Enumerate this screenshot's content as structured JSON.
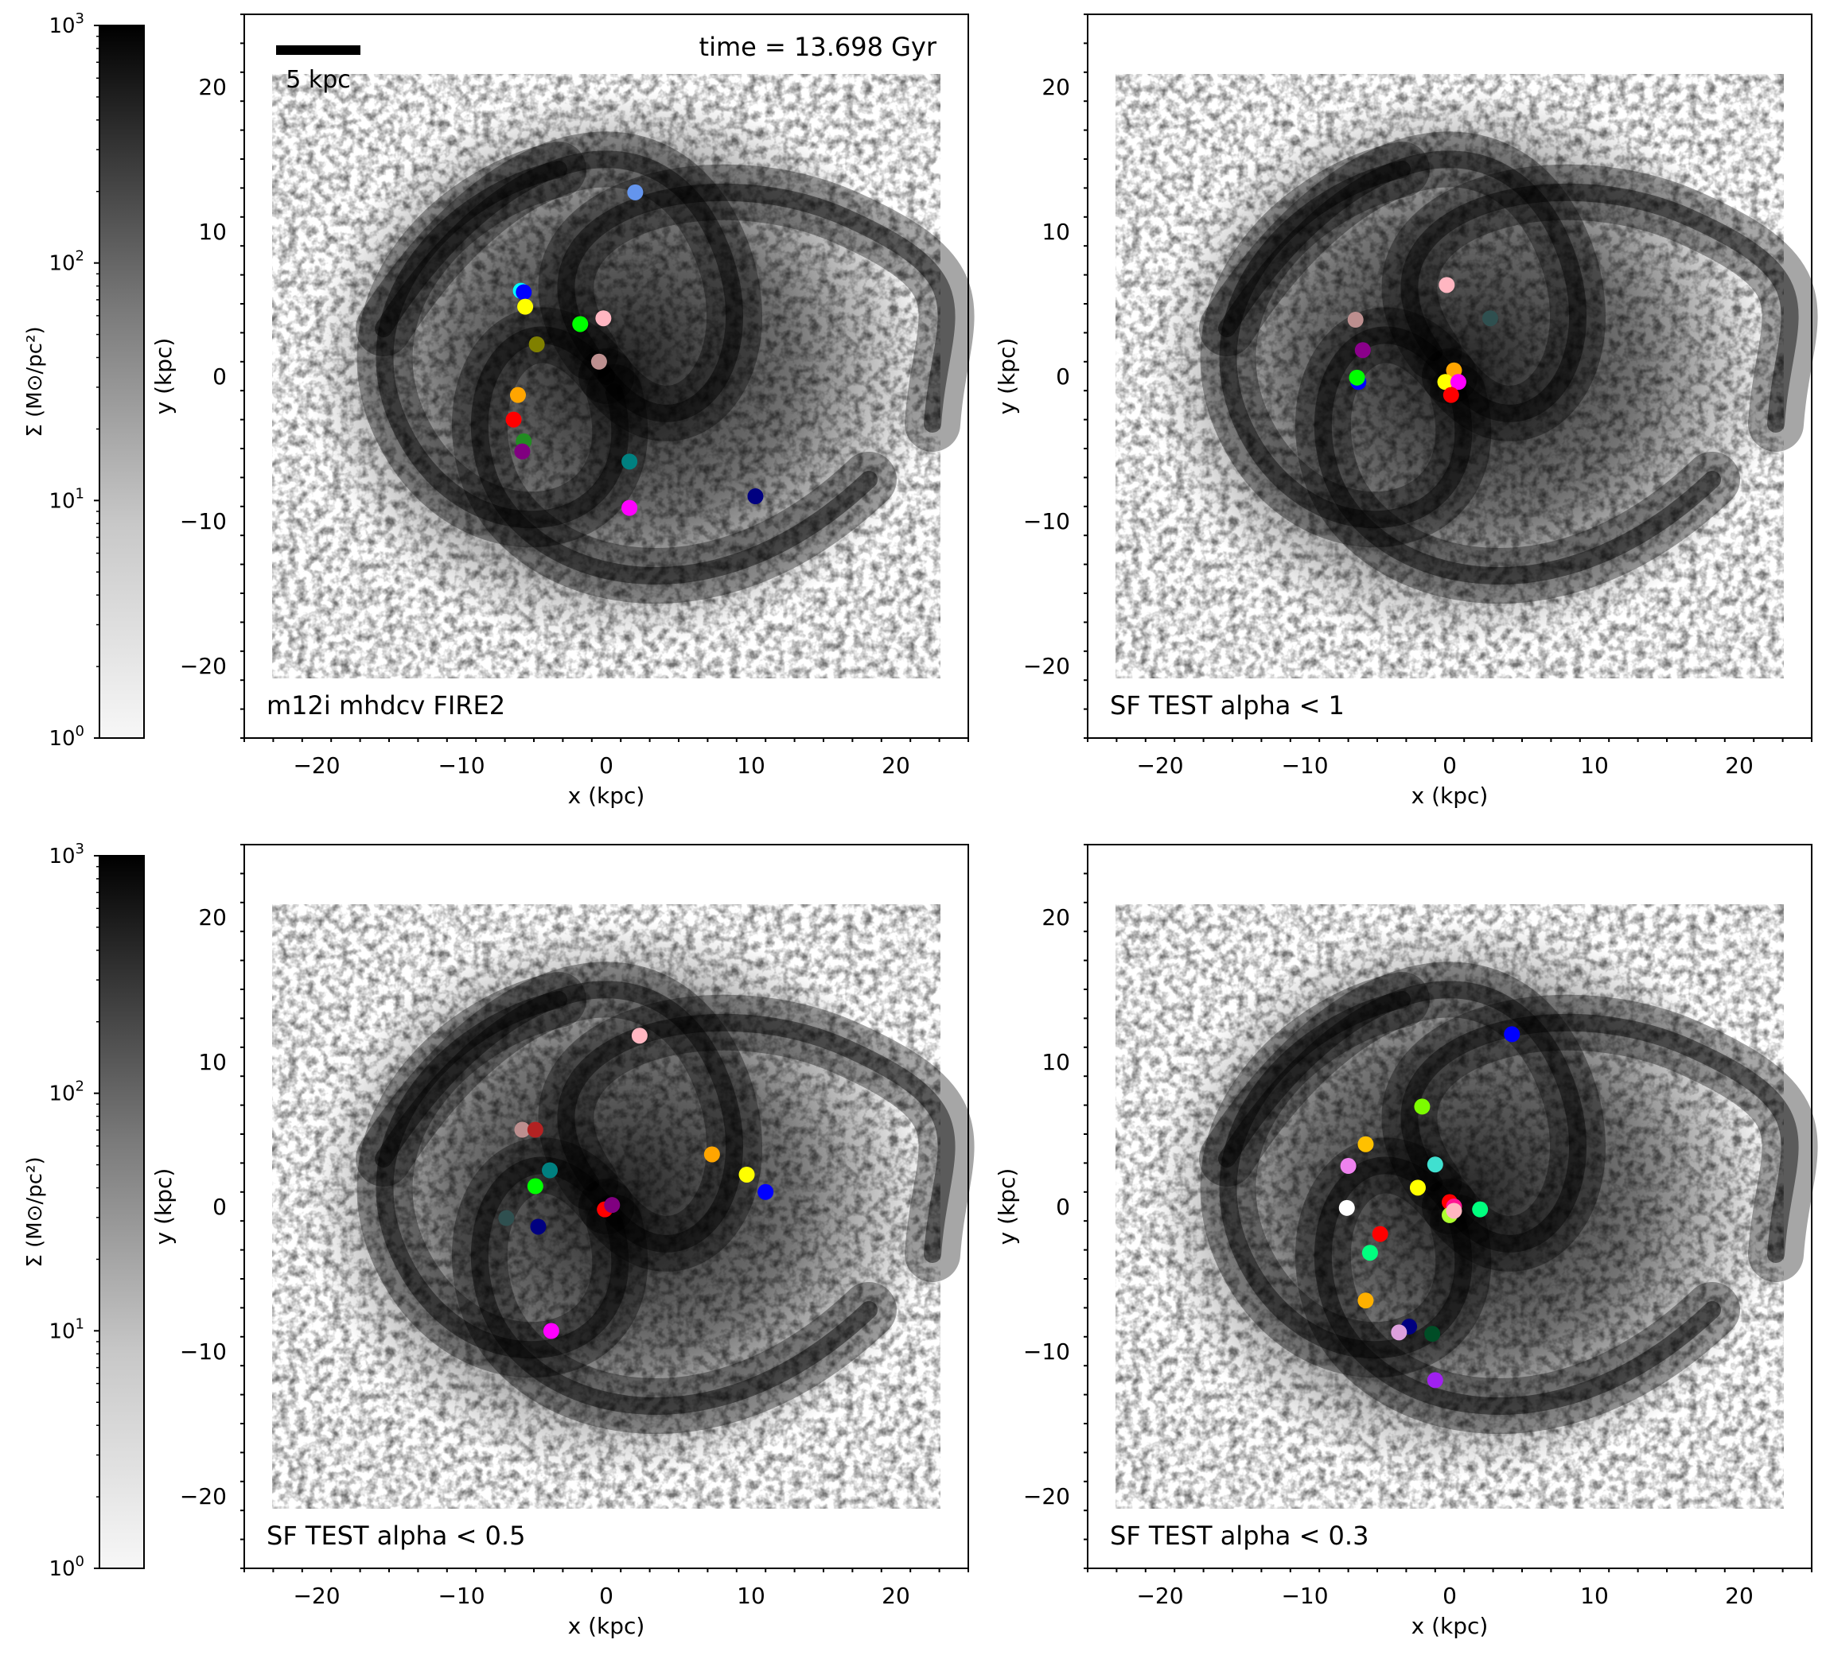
{
  "figure": {
    "time_label": "time = 13.698 Gyr",
    "scalebar_label": "5 kpc",
    "colorbar": {
      "label": "Σ (M⊙/pc²)",
      "ticks": [
        "10^3",
        "10^2",
        "10^1",
        "10^0"
      ]
    }
  },
  "chart_data": [
    {
      "type": "scatter",
      "title": "m12i mhdcv FIRE2",
      "xlabel": "x (kpc)",
      "ylabel": "y (kpc)",
      "xlim": [
        -25,
        25
      ],
      "ylim": [
        -25,
        25
      ],
      "xticks": [
        "−20",
        "−10",
        "0",
        "10",
        "20"
      ],
      "yticks": [
        "20",
        "10",
        "0",
        "−10",
        "−20"
      ],
      "background": "grayscale gas surface density map, spiral galaxy",
      "points": [
        {
          "x": 2.0,
          "y": 12.7,
          "color": "#6495ed"
        },
        {
          "x": -5.9,
          "y": 5.9,
          "color": "#00ffff"
        },
        {
          "x": -5.7,
          "y": 5.8,
          "color": "#0000ff"
        },
        {
          "x": -5.6,
          "y": 4.8,
          "color": "#ffff00"
        },
        {
          "x": -1.8,
          "y": 3.6,
          "color": "#00ff00"
        },
        {
          "x": -0.2,
          "y": 4.0,
          "color": "#ffb6c1"
        },
        {
          "x": -4.8,
          "y": 2.2,
          "color": "#808000"
        },
        {
          "x": -0.5,
          "y": 1.0,
          "color": "#bc8f8f"
        },
        {
          "x": -6.1,
          "y": -1.3,
          "color": "#ffa500"
        },
        {
          "x": -6.4,
          "y": -3.0,
          "color": "#ff0000"
        },
        {
          "x": -5.7,
          "y": -4.5,
          "color": "#228b22"
        },
        {
          "x": -5.8,
          "y": -5.2,
          "color": "#800080"
        },
        {
          "x": 1.6,
          "y": -5.9,
          "color": "#008080"
        },
        {
          "x": 10.3,
          "y": -8.3,
          "color": "#000080"
        },
        {
          "x": 1.6,
          "y": -9.1,
          "color": "#ff00ff"
        }
      ]
    },
    {
      "type": "scatter",
      "title": "SF TEST alpha < 1",
      "xlabel": "x (kpc)",
      "ylabel": "y (kpc)",
      "xlim": [
        -25,
        25
      ],
      "ylim": [
        -25,
        25
      ],
      "xticks": [
        "−20",
        "−10",
        "0",
        "10",
        "20"
      ],
      "yticks": [
        "20",
        "10",
        "0",
        "−10",
        "−20"
      ],
      "background": "grayscale gas surface density map, spiral galaxy",
      "points": [
        {
          "x": -0.2,
          "y": 6.3,
          "color": "#ffb6c1"
        },
        {
          "x": -6.5,
          "y": 3.9,
          "color": "#bc8f8f"
        },
        {
          "x": 2.8,
          "y": 4.0,
          "color": "#2f4f4f"
        },
        {
          "x": -6.0,
          "y": 1.8,
          "color": "#8b008b"
        },
        {
          "x": -6.3,
          "y": -0.4,
          "color": "#0000ff"
        },
        {
          "x": -6.4,
          "y": -0.1,
          "color": "#00ff00"
        },
        {
          "x": 0.3,
          "y": 0.4,
          "color": "#ffa500"
        },
        {
          "x": -0.3,
          "y": -0.4,
          "color": "#ffff00"
        },
        {
          "x": 0.6,
          "y": -0.4,
          "color": "#ff00ff"
        },
        {
          "x": 0.1,
          "y": -1.3,
          "color": "#ff0000"
        }
      ]
    },
    {
      "type": "scatter",
      "title": "SF TEST alpha < 0.5",
      "xlabel": "x (kpc)",
      "ylabel": "y (kpc)",
      "xlim": [
        -25,
        25
      ],
      "ylim": [
        -25,
        25
      ],
      "xticks": [
        "−20",
        "−10",
        "0",
        "10",
        "20"
      ],
      "yticks": [
        "20",
        "10",
        "0",
        "−10",
        "−20"
      ],
      "background": "grayscale gas surface density map, spiral galaxy",
      "points": [
        {
          "x": 2.3,
          "y": 11.8,
          "color": "#ffb6c1"
        },
        {
          "x": -5.8,
          "y": 5.3,
          "color": "#bc8f8f"
        },
        {
          "x": -4.9,
          "y": 5.3,
          "color": "#b22222"
        },
        {
          "x": 7.3,
          "y": 3.6,
          "color": "#ffa500"
        },
        {
          "x": 9.7,
          "y": 2.2,
          "color": "#ffff00"
        },
        {
          "x": 11.0,
          "y": 1.0,
          "color": "#0000ff"
        },
        {
          "x": -3.9,
          "y": 2.5,
          "color": "#008080"
        },
        {
          "x": -4.9,
          "y": 1.4,
          "color": "#00ff00"
        },
        {
          "x": -0.1,
          "y": -0.2,
          "color": "#ff0000"
        },
        {
          "x": 0.4,
          "y": 0.1,
          "color": "#800080"
        },
        {
          "x": -6.9,
          "y": -0.8,
          "color": "#2f4f4f"
        },
        {
          "x": -4.7,
          "y": -1.4,
          "color": "#000080"
        },
        {
          "x": -3.8,
          "y": -8.6,
          "color": "#ff00ff"
        }
      ]
    },
    {
      "type": "scatter",
      "title": "SF TEST alpha < 0.3",
      "xlabel": "x (kpc)",
      "ylabel": "y (kpc)",
      "xlim": [
        -25,
        25
      ],
      "ylim": [
        -25,
        25
      ],
      "xticks": [
        "−20",
        "−10",
        "0",
        "10",
        "20"
      ],
      "yticks": [
        "20",
        "10",
        "0",
        "−10",
        "−20"
      ],
      "background": "grayscale gas surface density map, spiral galaxy",
      "points": [
        {
          "x": 4.3,
          "y": 11.9,
          "color": "#0000ff"
        },
        {
          "x": -1.9,
          "y": 6.9,
          "color": "#7cfc00"
        },
        {
          "x": -5.8,
          "y": 4.3,
          "color": "#ffc000"
        },
        {
          "x": -7.0,
          "y": 2.8,
          "color": "#ee82ee"
        },
        {
          "x": -1.0,
          "y": 2.9,
          "color": "#40e0d0"
        },
        {
          "x": -2.2,
          "y": 1.3,
          "color": "#ffff00"
        },
        {
          "x": -7.1,
          "y": -0.1,
          "color": "#ffffff"
        },
        {
          "x": 0.0,
          "y": 0.3,
          "color": "#ff0000"
        },
        {
          "x": 0.3,
          "y": 0.0,
          "color": "#ff1493"
        },
        {
          "x": 2.1,
          "y": -0.2,
          "color": "#00ff7f"
        },
        {
          "x": 0.0,
          "y": -0.6,
          "color": "#adff2f"
        },
        {
          "x": 0.3,
          "y": -0.3,
          "color": "#ffb6c1"
        },
        {
          "x": -4.8,
          "y": -1.9,
          "color": "#ff0000"
        },
        {
          "x": -5.5,
          "y": -3.2,
          "color": "#00ff7f"
        },
        {
          "x": -5.8,
          "y": -6.5,
          "color": "#ffb000"
        },
        {
          "x": -2.8,
          "y": -8.3,
          "color": "#000080"
        },
        {
          "x": -3.5,
          "y": -8.7,
          "color": "#dda0dd"
        },
        {
          "x": -1.2,
          "y": -8.8,
          "color": "#004d26"
        },
        {
          "x": -1.0,
          "y": -12.0,
          "color": "#a020f0"
        }
      ]
    }
  ]
}
